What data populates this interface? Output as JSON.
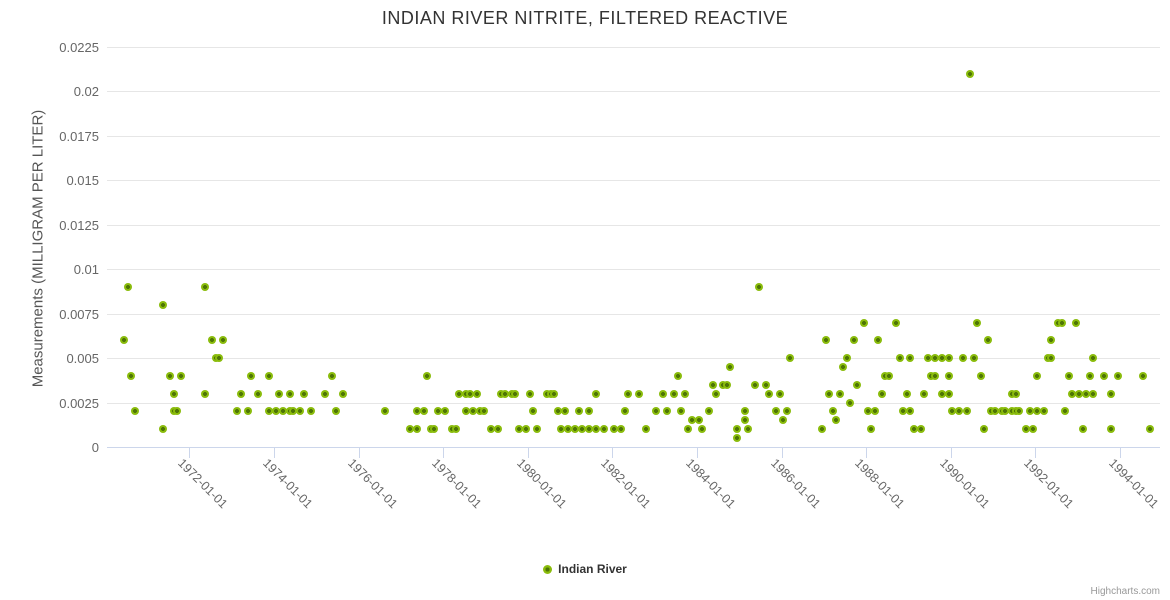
{
  "title": "INDIAN RIVER NITRITE, FILTERED REACTIVE",
  "legend": {
    "series_label": "Indian River"
  },
  "credits_label": "Highcharts.com",
  "colors": {
    "marker_outer": "#8abc0c",
    "marker_inner": "#4e7505",
    "gridline": "#e6e6e6",
    "axis_tick": "#ccd6eb",
    "title_text": "#333333",
    "axis_label_text": "#666666",
    "credits_text": "#999999"
  },
  "chart_data": {
    "type": "scatter",
    "title": "INDIAN RIVER NITRITE, FILTERED REACTIVE",
    "xlabel": "",
    "ylabel": "Measurements (MILLIGRAM PER LITER)",
    "legend_position": "bottom-center",
    "grid": "horizontal-only",
    "x_axis": {
      "type": "datetime",
      "range_years": [
        1970.05,
        1994.95
      ],
      "tick_labels": [
        "1972-01-01",
        "1974-01-01",
        "1976-01-01",
        "1978-01-01",
        "1980-01-01",
        "1982-01-01",
        "1984-01-01",
        "1986-01-01",
        "1988-01-01",
        "1990-01-01",
        "1992-01-01",
        "1994-01-01"
      ],
      "label_rotation_deg": 45
    },
    "y_axis": {
      "min": 0,
      "max": 0.0225,
      "tick_interval": 0.0025,
      "tick_labels": [
        "0",
        "0.0025",
        "0.005",
        "0.0075",
        "0.01",
        "0.0125",
        "0.015",
        "0.0175",
        "0.02",
        "0.0225"
      ]
    },
    "series": [
      {
        "name": "Indian River",
        "points": [
          [
            "1970-06",
            0.006
          ],
          [
            "1970-07",
            0.009
          ],
          [
            "1970-08",
            0.004
          ],
          [
            "1970-09",
            0.002
          ],
          [
            "1971-05",
            0.001
          ],
          [
            "1971-05",
            0.008
          ],
          [
            "1971-07",
            0.004
          ],
          [
            "1971-08",
            0.003
          ],
          [
            "1971-08",
            0.002
          ],
          [
            "1971-09",
            0.002
          ],
          [
            "1971-10",
            0.004
          ],
          [
            "1972-05",
            0.003
          ],
          [
            "1972-05",
            0.009
          ],
          [
            "1972-07",
            0.006
          ],
          [
            "1972-08",
            0.005
          ],
          [
            "1972-09",
            0.005
          ],
          [
            "1972-10",
            0.006
          ],
          [
            "1973-02",
            0.002
          ],
          [
            "1973-03",
            0.003
          ],
          [
            "1973-05",
            0.002
          ],
          [
            "1973-06",
            0.004
          ],
          [
            "1973-08",
            0.003
          ],
          [
            "1973-11",
            0.002
          ],
          [
            "1973-11",
            0.004
          ],
          [
            "1974-01",
            0.002
          ],
          [
            "1974-02",
            0.003
          ],
          [
            "1974-03",
            0.002
          ],
          [
            "1974-05",
            0.003
          ],
          [
            "1974-05",
            0.002
          ],
          [
            "1974-06",
            0.002
          ],
          [
            "1974-08",
            0.002
          ],
          [
            "1974-09",
            0.003
          ],
          [
            "1974-11",
            0.002
          ],
          [
            "1975-03",
            0.003
          ],
          [
            "1975-05",
            0.004
          ],
          [
            "1975-06",
            0.002
          ],
          [
            "1975-08",
            0.003
          ],
          [
            "1976-08",
            0.002
          ],
          [
            "1977-03",
            0.001
          ],
          [
            "1977-05",
            0.001
          ],
          [
            "1977-05",
            0.002
          ],
          [
            "1977-07",
            0.002
          ],
          [
            "1977-08",
            0.004
          ],
          [
            "1977-09",
            0.001
          ],
          [
            "1977-10",
            0.001
          ],
          [
            "1977-11",
            0.002
          ],
          [
            "1978-01",
            0.002
          ],
          [
            "1978-03",
            0.001
          ],
          [
            "1978-04",
            0.001
          ],
          [
            "1978-05",
            0.003
          ],
          [
            "1978-07",
            0.003
          ],
          [
            "1978-07",
            0.002
          ],
          [
            "1978-08",
            0.003
          ],
          [
            "1978-09",
            0.002
          ],
          [
            "1978-10",
            0.003
          ],
          [
            "1978-11",
            0.002
          ],
          [
            "1978-12",
            0.002
          ],
          [
            "1979-02",
            0.001
          ],
          [
            "1979-04",
            0.001
          ],
          [
            "1979-05",
            0.003
          ],
          [
            "1979-06",
            0.003
          ],
          [
            "1979-08",
            0.003
          ],
          [
            "1979-09",
            0.003
          ],
          [
            "1979-10",
            0.001
          ],
          [
            "1979-12",
            0.001
          ],
          [
            "1980-01",
            0.003
          ],
          [
            "1980-02",
            0.002
          ],
          [
            "1980-03",
            0.001
          ],
          [
            "1980-06",
            0.003
          ],
          [
            "1980-07",
            0.003
          ],
          [
            "1980-08",
            0.003
          ],
          [
            "1980-09",
            0.002
          ],
          [
            "1980-10",
            0.001
          ],
          [
            "1980-11",
            0.002
          ],
          [
            "1980-12",
            0.001
          ],
          [
            "1981-02",
            0.001
          ],
          [
            "1981-03",
            0.002
          ],
          [
            "1981-04",
            0.001
          ],
          [
            "1981-06",
            0.002
          ],
          [
            "1981-06",
            0.001
          ],
          [
            "1981-08",
            0.003
          ],
          [
            "1981-08",
            0.001
          ],
          [
            "1981-10",
            0.001
          ],
          [
            "1982-01",
            0.001
          ],
          [
            "1982-03",
            0.001
          ],
          [
            "1982-04",
            0.002
          ],
          [
            "1982-05",
            0.003
          ],
          [
            "1982-08",
            0.003
          ],
          [
            "1982-10",
            0.001
          ],
          [
            "1983-01",
            0.002
          ],
          [
            "1983-03",
            0.003
          ],
          [
            "1983-04",
            0.002
          ],
          [
            "1983-06",
            0.003
          ],
          [
            "1983-07",
            0.004
          ],
          [
            "1983-08",
            0.002
          ],
          [
            "1983-09",
            0.003
          ],
          [
            "1983-10",
            0.001
          ],
          [
            "1983-11",
            0.0015
          ],
          [
            "1984-01",
            0.0015
          ],
          [
            "1984-02",
            0.001
          ],
          [
            "1984-04",
            0.002
          ],
          [
            "1984-05",
            0.0035
          ],
          [
            "1984-06",
            0.003
          ],
          [
            "1984-08",
            0.0035
          ],
          [
            "1984-09",
            0.0035
          ],
          [
            "1984-10",
            0.0045
          ],
          [
            "1984-12",
            0.001
          ],
          [
            "1984-12",
            0.0005
          ],
          [
            "1985-02",
            0.002
          ],
          [
            "1985-02",
            0.0015
          ],
          [
            "1985-03",
            0.001
          ],
          [
            "1985-05",
            0.0035
          ],
          [
            "1985-06",
            0.009
          ],
          [
            "1985-08",
            0.0035
          ],
          [
            "1985-09",
            0.003
          ],
          [
            "1985-11",
            0.002
          ],
          [
            "1985-12",
            0.003
          ],
          [
            "1986-01",
            0.0015
          ],
          [
            "1986-02",
            0.002
          ],
          [
            "1986-03",
            0.005
          ],
          [
            "1986-12",
            0.001
          ],
          [
            "1987-01",
            0.006
          ],
          [
            "1987-02",
            0.003
          ],
          [
            "1987-03",
            0.002
          ],
          [
            "1987-04",
            0.0015
          ],
          [
            "1987-05",
            0.003
          ],
          [
            "1987-06",
            0.0045
          ],
          [
            "1987-07",
            0.005
          ],
          [
            "1987-08",
            0.0025
          ],
          [
            "1987-09",
            0.006
          ],
          [
            "1987-10",
            0.0035
          ],
          [
            "1987-12",
            0.007
          ],
          [
            "1988-01",
            0.002
          ],
          [
            "1988-02",
            0.001
          ],
          [
            "1988-03",
            0.002
          ],
          [
            "1988-04",
            0.006
          ],
          [
            "1988-05",
            0.003
          ],
          [
            "1988-06",
            0.004
          ],
          [
            "1988-07",
            0.004
          ],
          [
            "1988-09",
            0.007
          ],
          [
            "1988-10",
            0.005
          ],
          [
            "1988-11",
            0.002
          ],
          [
            "1988-12",
            0.003
          ],
          [
            "1989-01",
            0.005
          ],
          [
            "1989-01",
            0.002
          ],
          [
            "1989-02",
            0.001
          ],
          [
            "1989-04",
            0.001
          ],
          [
            "1989-05",
            0.003
          ],
          [
            "1989-06",
            0.005
          ],
          [
            "1989-07",
            0.004
          ],
          [
            "1989-08",
            0.005
          ],
          [
            "1989-08",
            0.004
          ],
          [
            "1989-10",
            0.005
          ],
          [
            "1989-10",
            0.003
          ],
          [
            "1989-12",
            0.005
          ],
          [
            "1989-12",
            0.004
          ],
          [
            "1989-12",
            0.003
          ],
          [
            "1990-01",
            0.002
          ],
          [
            "1990-03",
            0.002
          ],
          [
            "1990-04",
            0.005
          ],
          [
            "1990-05",
            0.002
          ],
          [
            "1990-06",
            0.021
          ],
          [
            "1990-07",
            0.005
          ],
          [
            "1990-08",
            0.007
          ],
          [
            "1990-09",
            0.004
          ],
          [
            "1990-10",
            0.001
          ],
          [
            "1990-11",
            0.006
          ],
          [
            "1990-12",
            0.002
          ],
          [
            "1991-01",
            0.002
          ],
          [
            "1991-03",
            0.002
          ],
          [
            "1991-04",
            0.002
          ],
          [
            "1991-06",
            0.003
          ],
          [
            "1991-06",
            0.002
          ],
          [
            "1991-07",
            0.003
          ],
          [
            "1991-07",
            0.002
          ],
          [
            "1991-08",
            0.002
          ],
          [
            "1991-10",
            0.001
          ],
          [
            "1991-11",
            0.002
          ],
          [
            "1991-12",
            0.001
          ],
          [
            "1992-01",
            0.004
          ],
          [
            "1992-01",
            0.002
          ],
          [
            "1992-03",
            0.002
          ],
          [
            "1992-04",
            0.005
          ],
          [
            "1992-05",
            0.006
          ],
          [
            "1992-05",
            0.005
          ],
          [
            "1992-07",
            0.007
          ],
          [
            "1992-08",
            0.007
          ],
          [
            "1992-09",
            0.002
          ],
          [
            "1992-10",
            0.004
          ],
          [
            "1992-11",
            0.003
          ],
          [
            "1992-12",
            0.007
          ],
          [
            "1993-01",
            0.003
          ],
          [
            "1993-02",
            0.001
          ],
          [
            "1993-03",
            0.003
          ],
          [
            "1993-04",
            0.004
          ],
          [
            "1993-05",
            0.005
          ],
          [
            "1993-05",
            0.003
          ],
          [
            "1993-08",
            0.004
          ],
          [
            "1993-10",
            0.003
          ],
          [
            "1993-10",
            0.001
          ],
          [
            "1993-12",
            0.004
          ],
          [
            "1994-07",
            0.004
          ],
          [
            "1994-09",
            0.001
          ]
        ]
      }
    ]
  }
}
